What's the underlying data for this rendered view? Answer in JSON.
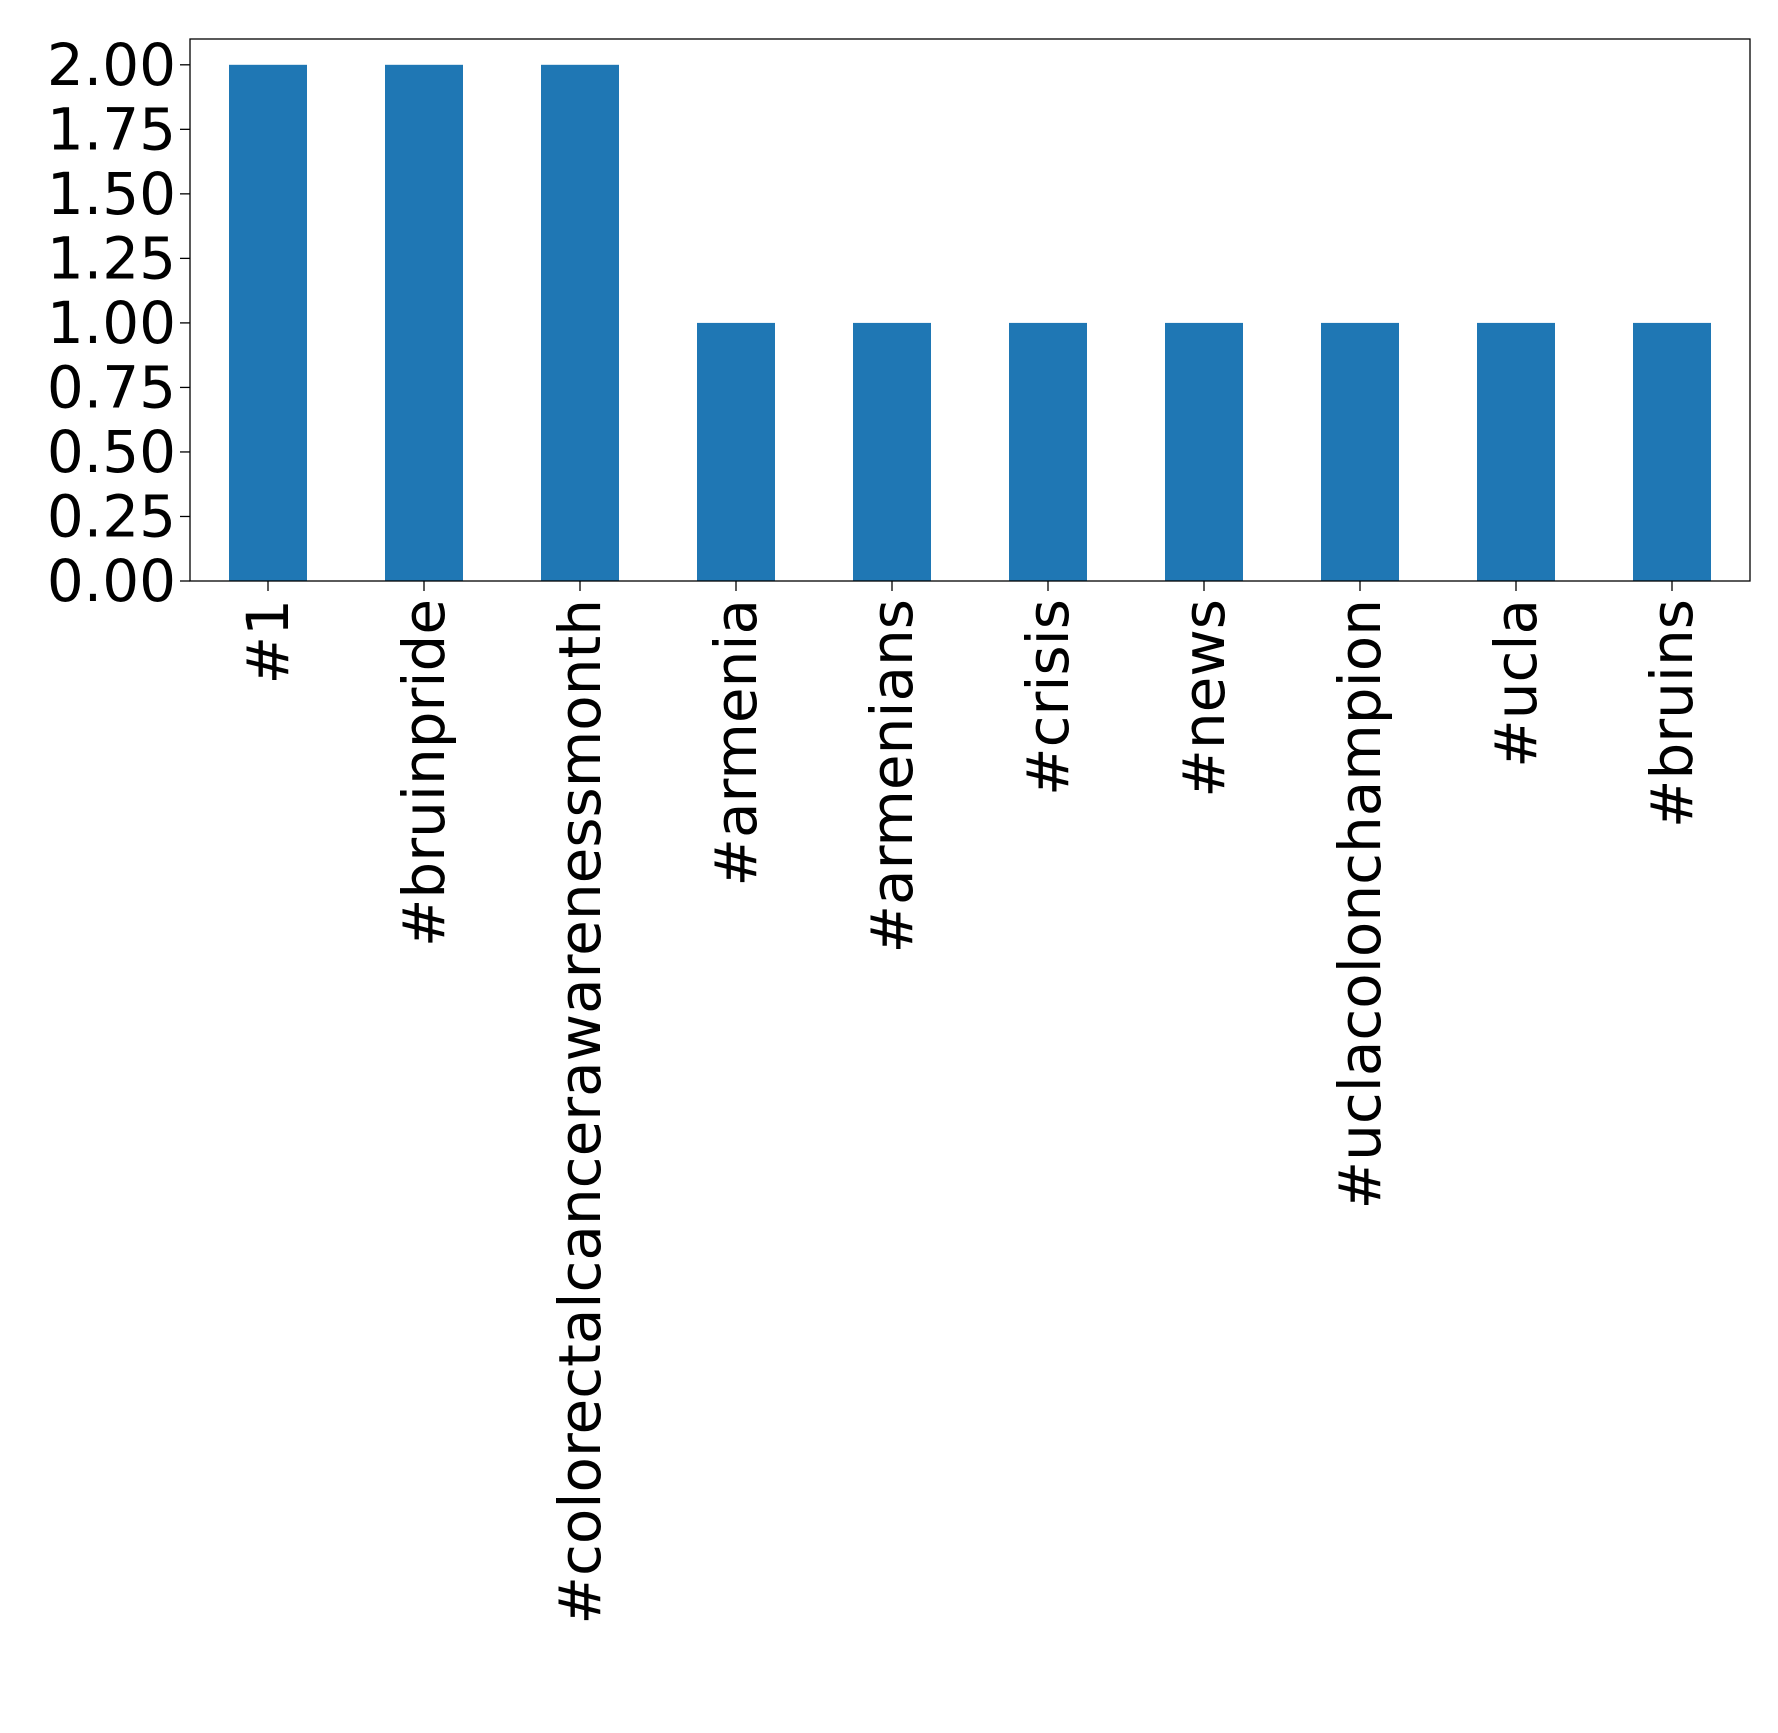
{
  "chart_data": {
    "type": "bar",
    "title": "",
    "xlabel": "",
    "ylabel": "",
    "categories": [
      "#1",
      "#bruinpride",
      "#colorectalcancerawarenessmonth",
      "#armenia",
      "#armenians",
      "#crisis",
      "#news",
      "#uclacolonchampion",
      "#ucla",
      "#bruins"
    ],
    "values": [
      2,
      2,
      2,
      1,
      1,
      1,
      1,
      1,
      1,
      1
    ],
    "ylim": [
      0,
      2.1
    ],
    "yticks": [
      "0.00",
      "0.25",
      "0.50",
      "0.75",
      "1.00",
      "1.25",
      "1.50",
      "1.75",
      "2.00"
    ],
    "bar_color": "#1f77b4",
    "grid": false,
    "legend": "none"
  }
}
